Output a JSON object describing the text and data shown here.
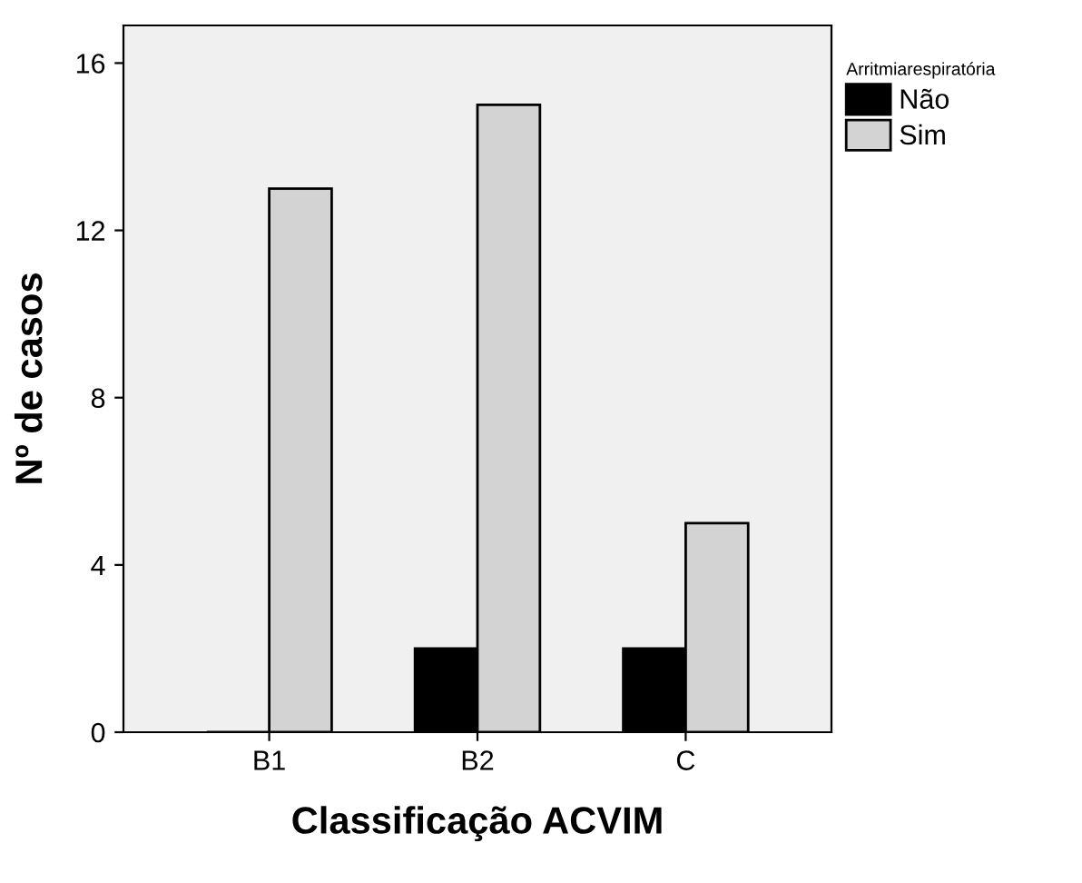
{
  "chart_data": {
    "type": "bar",
    "xlabel": "Classificação ACVIM",
    "ylabel": "Nº de casos",
    "legend_title": "Arritmiarespiratória",
    "categories": [
      "B1",
      "B2",
      "C"
    ],
    "series": [
      {
        "name": "Não",
        "color": "#000000",
        "values": [
          0,
          2,
          2
        ]
      },
      {
        "name": "Sim",
        "color": "#d3d3d3",
        "values": [
          13,
          15,
          5
        ]
      }
    ],
    "ylim": [
      0,
      16.9
    ],
    "yticks": [
      0,
      4,
      8,
      12,
      16
    ],
    "grid": false,
    "legend": "top right"
  }
}
